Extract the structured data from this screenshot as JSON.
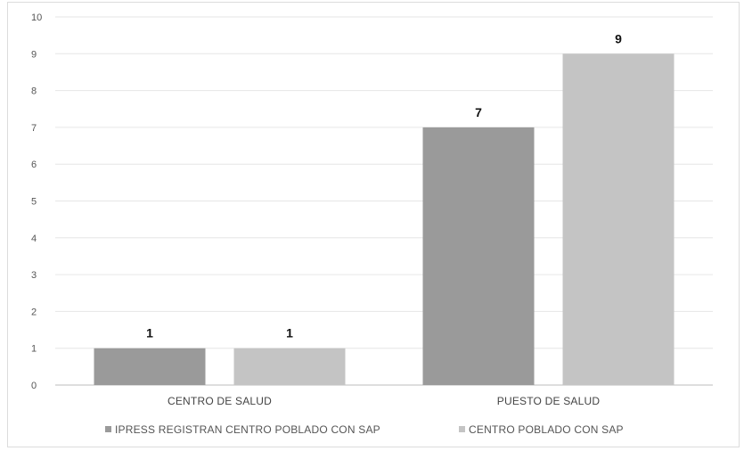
{
  "chart_data": {
    "type": "bar",
    "title": "",
    "xlabel": "",
    "ylabel": "",
    "categories": [
      "CENTRO DE SALUD",
      "PUESTO DE SALUD"
    ],
    "series": [
      {
        "name": "IPRESS REGISTRAN CENTRO POBLADO CON SAP",
        "values": [
          1,
          7
        ],
        "color": "#9a9a9a"
      },
      {
        "name": "CENTRO POBLADO CON SAP",
        "values": [
          1,
          9
        ],
        "color": "#c4c4c4"
      }
    ],
    "ylim": [
      0,
      10
    ],
    "yticks": [
      0,
      1,
      2,
      3,
      4,
      5,
      6,
      7,
      8,
      9,
      10
    ],
    "grid": true,
    "legend": "bottom",
    "data_labels": true
  }
}
